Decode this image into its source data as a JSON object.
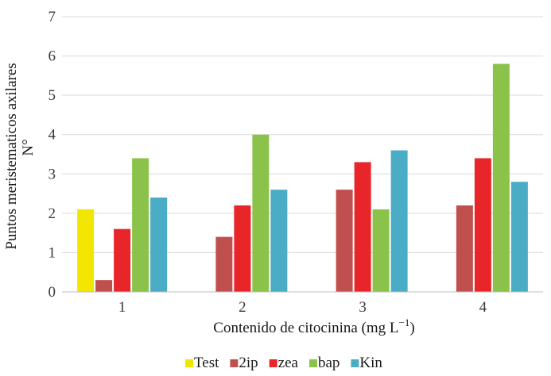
{
  "chart_data": {
    "type": "bar",
    "categories": [
      "1",
      "2",
      "3",
      "4"
    ],
    "series": [
      {
        "name": "Test",
        "color": "#f2e600",
        "values": [
          2.1,
          null,
          null,
          null
        ]
      },
      {
        "name": "2ip",
        "color": "#c0504d",
        "values": [
          0.3,
          1.4,
          2.6,
          2.2
        ]
      },
      {
        "name": "zea",
        "color": "#e8262a",
        "values": [
          1.6,
          2.2,
          3.3,
          3.4
        ]
      },
      {
        "name": "bap",
        "color": "#8bc34a",
        "values": [
          3.4,
          4.0,
          2.1,
          5.8
        ]
      },
      {
        "name": "Kin",
        "color": "#4bacc6",
        "values": [
          2.4,
          2.6,
          3.6,
          2.8
        ]
      }
    ],
    "yticks": [
      "0",
      "1",
      "2",
      "3",
      "4",
      "5",
      "6",
      "7"
    ],
    "ylim": [
      0,
      7
    ],
    "ylabel_line1": "Puntos meristematicos axilares",
    "ylabel_line2": "N°",
    "xlabel_text": "Contenido de citocinina (mg L",
    "xlabel_sup": "−1",
    "xlabel_close": ")",
    "grid": true,
    "legend_position": "bottom"
  }
}
